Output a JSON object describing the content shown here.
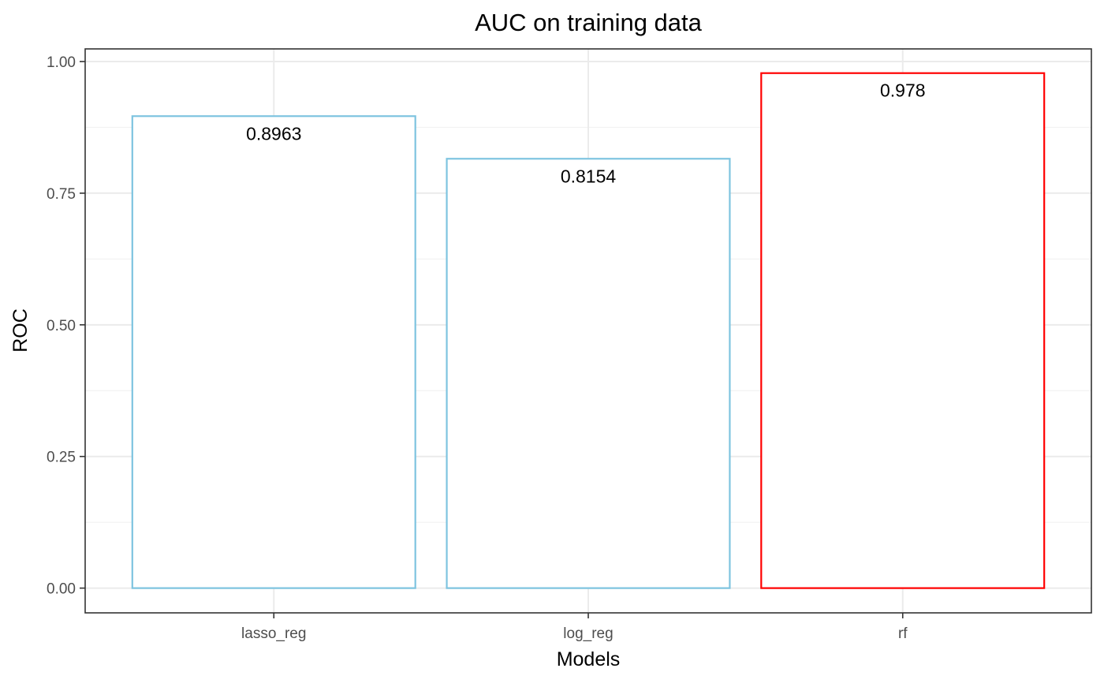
{
  "chart_data": {
    "type": "bar",
    "title": "AUC on training data",
    "xlabel": "Models",
    "ylabel": "ROC",
    "categories": [
      "lasso_reg",
      "log_reg",
      "rf"
    ],
    "values": [
      0.8963,
      0.8154,
      0.978
    ],
    "data_labels": [
      "0.8963",
      "0.8154",
      "0.978"
    ],
    "bar_outline_colors": [
      "#7ec4e0",
      "#7ec4e0",
      "#ff0000"
    ],
    "ylim": [
      -0.047,
      1.024
    ],
    "yticks": [
      0,
      0.25,
      0.5,
      0.75,
      1.0
    ],
    "ytick_labels": [
      "0.00",
      "0.25",
      "0.50",
      "0.75",
      "1.00"
    ],
    "grid": true,
    "legend": "none"
  }
}
